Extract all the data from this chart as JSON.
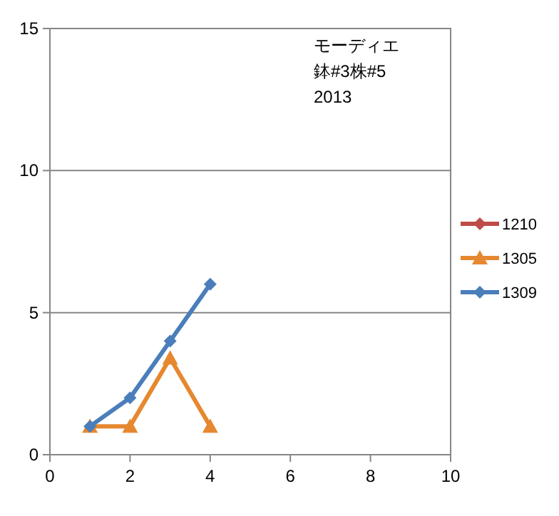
{
  "chart_data": {
    "type": "line",
    "xlim": [
      0,
      10
    ],
    "xticks": [
      0,
      2,
      4,
      6,
      8,
      10
    ],
    "ylim": [
      0,
      15
    ],
    "yticks": [
      0,
      5,
      10,
      15
    ],
    "grid": "y",
    "legend": "right",
    "line_style": "solid",
    "annotations": [
      "モーディエ",
      "鉢#3株#5",
      "2013"
    ],
    "series": [
      {
        "name": "1210",
        "color": "#be4b48",
        "marker": "diamond"
      },
      {
        "name": "1305",
        "color": "#e6882f",
        "marker": "triangle",
        "x": [
          1,
          2,
          3,
          4
        ],
        "values": [
          1,
          1,
          3.4,
          1
        ]
      },
      {
        "name": "1309",
        "color": "#4a7ebb",
        "marker": "diamond",
        "x": [
          1,
          2,
          3,
          4
        ],
        "values": [
          1,
          2,
          4,
          6
        ]
      }
    ]
  }
}
